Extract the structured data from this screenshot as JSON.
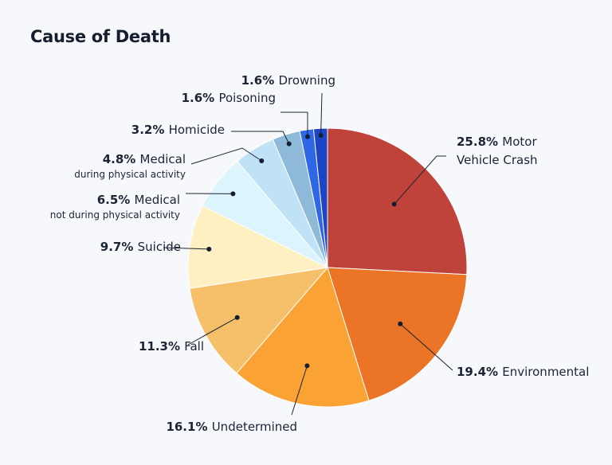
{
  "chart_data": {
    "type": "pie",
    "title": "Cause of Death",
    "slices": [
      {
        "label": "Motor Vehicle Crash",
        "value": 25.8,
        "pct_label": "25.8%",
        "lines": [
          "Motor",
          "Vehicle Crash"
        ],
        "sublabel": "",
        "color": "#c0433b"
      },
      {
        "label": "Environmental",
        "value": 19.4,
        "pct_label": "19.4%",
        "lines": [
          "Environmental"
        ],
        "sublabel": "",
        "color": "#ec7427"
      },
      {
        "label": "Undetermined",
        "value": 16.1,
        "pct_label": "16.1%",
        "lines": [
          "Undetermined"
        ],
        "sublabel": "",
        "color": "#fba234"
      },
      {
        "label": "Fall",
        "value": 11.3,
        "pct_label": "11.3%",
        "lines": [
          "Fall"
        ],
        "sublabel": "",
        "color": "#f6bf6a"
      },
      {
        "label": "Suicide",
        "value": 9.7,
        "pct_label": "9.7%",
        "lines": [
          "Suicide"
        ],
        "sublabel": "",
        "color": "#fef0c2"
      },
      {
        "label": "Medical",
        "value": 6.5,
        "pct_label": "6.5%",
        "lines": [
          "Medical"
        ],
        "sublabel": "not during physical activity",
        "color": "#dcf4fc"
      },
      {
        "label": "Medical",
        "value": 4.8,
        "pct_label": "4.8%",
        "lines": [
          "Medical"
        ],
        "sublabel": "during physical activity",
        "color": "#bfe2f6"
      },
      {
        "label": "Homicide",
        "value": 3.2,
        "pct_label": "3.2%",
        "lines": [
          "Homicide"
        ],
        "sublabel": "",
        "color": "#8fb9d9"
      },
      {
        "label": "Poisoning",
        "value": 1.6,
        "pct_label": "1.6%",
        "lines": [
          "Poisoning"
        ],
        "sublabel": "",
        "color": "#2f68e6"
      },
      {
        "label": "Drowning",
        "value": 1.6,
        "pct_label": "1.6%",
        "lines": [
          "Drowning"
        ],
        "sublabel": "",
        "color": "#1d44c4"
      }
    ],
    "legend": "none",
    "start_angle": "12 o'clock",
    "direction": "clockwise"
  }
}
